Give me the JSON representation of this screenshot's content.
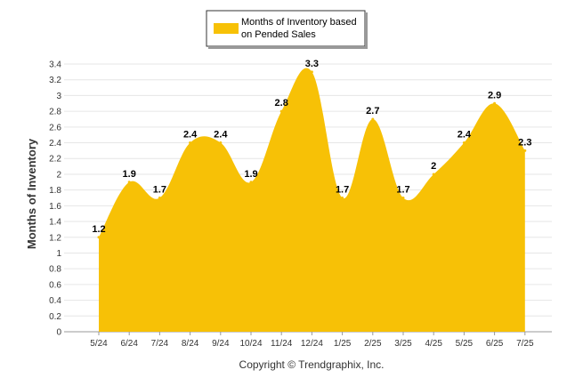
{
  "chart_data": {
    "type": "area",
    "categories": [
      "5/24",
      "6/24",
      "7/24",
      "8/24",
      "9/24",
      "10/24",
      "11/24",
      "12/24",
      "1/25",
      "2/25",
      "3/25",
      "4/25",
      "5/25",
      "6/25",
      "7/25"
    ],
    "series": [
      {
        "name": "Months of Inventory based on Pended Sales",
        "values": [
          1.2,
          1.9,
          1.7,
          2.4,
          2.4,
          1.9,
          2.8,
          3.3,
          1.7,
          2.7,
          1.7,
          2.0,
          2.4,
          2.9,
          2.3
        ],
        "labels": [
          "1.2",
          "1.9",
          "1.7",
          "2.4",
          "2.4",
          "1.9",
          "2.8",
          "3.3",
          "1.7",
          "2.7",
          "1.7",
          "2",
          "2.4",
          "2.9",
          "2.3"
        ],
        "color": "#F7C106"
      }
    ],
    "legend_lines": [
      "Months of Inventory based",
      "on Pended Sales"
    ],
    "ylabel": "Months of Inventory",
    "xlabel": "",
    "ylim": [
      0,
      3.4
    ],
    "yticks": [
      "0",
      "0.2",
      "0.4",
      "0.6",
      "0.8",
      "1",
      "1.2",
      "1.4",
      "1.6",
      "1.8",
      "2",
      "2.2",
      "2.4",
      "2.6",
      "2.8",
      "3",
      "3.2",
      "3.4"
    ],
    "grid": true,
    "legend_position": "top-center"
  },
  "footer": {
    "copyright": "Copyright © Trendgraphix, Inc."
  }
}
